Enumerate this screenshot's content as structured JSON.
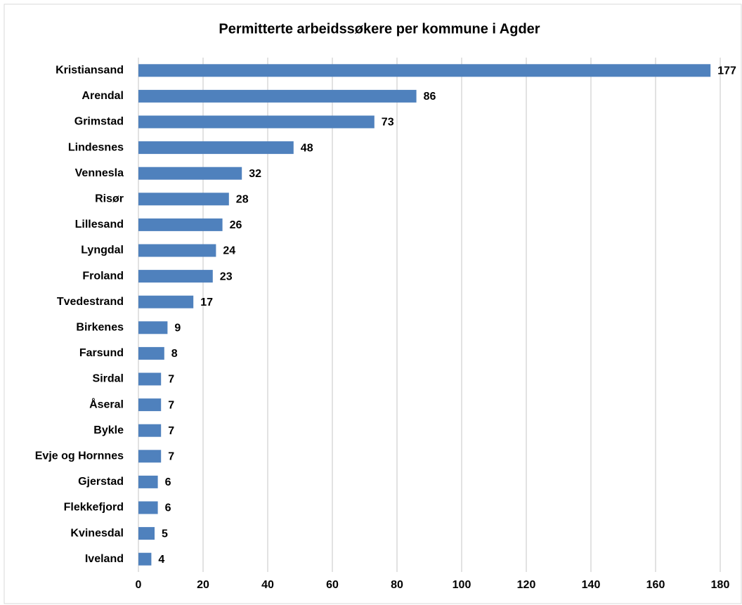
{
  "chart_data": {
    "type": "bar",
    "orientation": "horizontal",
    "title": "Permitterte arbeidssøkere per kommune i Agder",
    "categories": [
      "Kristiansand",
      "Arendal",
      "Grimstad",
      "Lindesnes",
      "Vennesla",
      "Risør",
      "Lillesand",
      "Lyngdal",
      "Froland",
      "Tvedestrand",
      "Birkenes",
      "Farsund",
      "Sirdal",
      "Åseral",
      "Bykle",
      "Evje og Hornnes",
      "Gjerstad",
      "Flekkefjord",
      "Kvinesdal",
      "Iveland"
    ],
    "values": [
      177,
      86,
      73,
      48,
      32,
      28,
      26,
      24,
      23,
      17,
      9,
      8,
      7,
      7,
      7,
      7,
      6,
      6,
      5,
      4
    ],
    "color": "#4f81bd",
    "xlim": [
      0,
      180
    ],
    "xticks": [
      0,
      20,
      40,
      60,
      80,
      100,
      120,
      140,
      160,
      180
    ],
    "grid": true
  }
}
